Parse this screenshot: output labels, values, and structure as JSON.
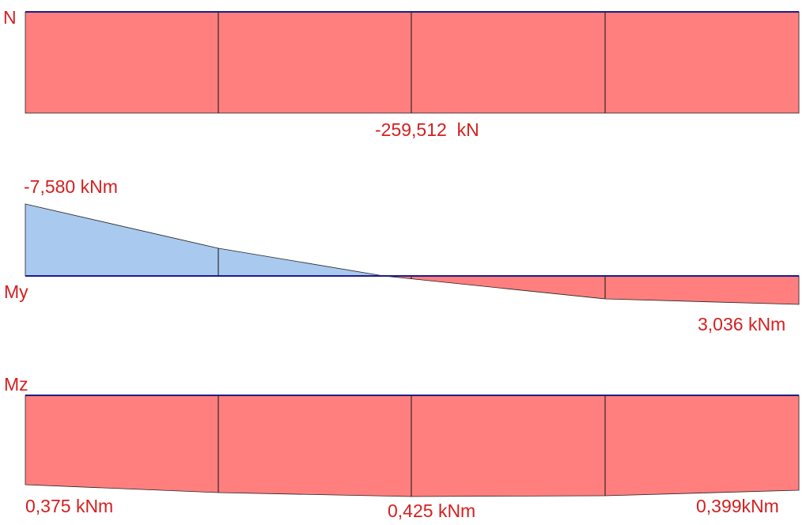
{
  "diagrams": [
    {
      "label": "N",
      "value_labels": [
        "-259,512  kN"
      ]
    },
    {
      "label": "My",
      "value_labels": [
        "-7,580 kNm",
        "3,036 kNm"
      ]
    },
    {
      "label": "Mz",
      "value_labels": [
        "0,375 kNm",
        "0,425 kNm",
        "0,399kNm"
      ]
    }
  ]
}
